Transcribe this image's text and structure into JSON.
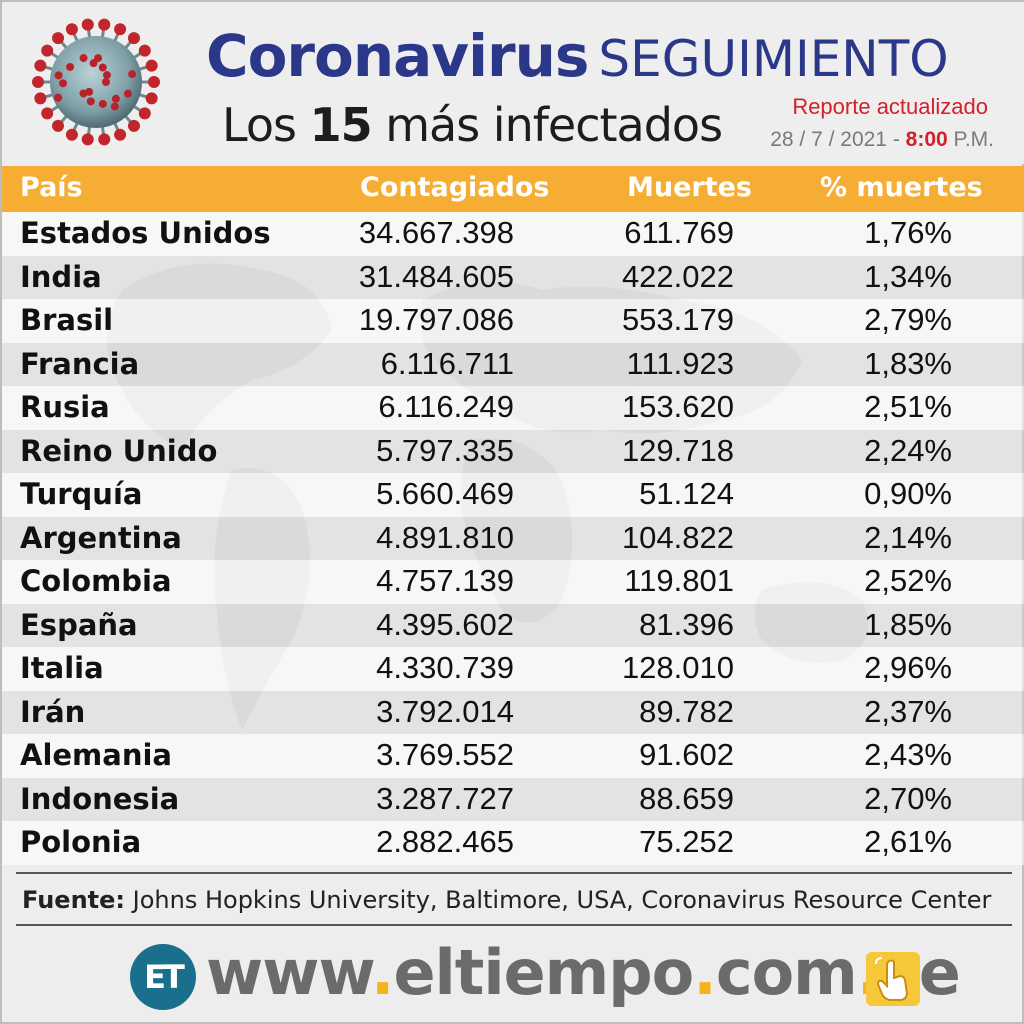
{
  "header": {
    "title_main": "Coronavirus",
    "title_sub": "SEGUIMIENTO",
    "subtitle_prefix": "Los",
    "subtitle_number": "15",
    "subtitle_suffix": "más infectados",
    "report_label": "Reporte actualizado",
    "report_date": "28 / 7 / 2021 -",
    "report_hour": "8:00",
    "report_ampm": "P.M.",
    "virus_icon": "coronavirus-icon"
  },
  "colors": {
    "title": "#2b3788",
    "header_band": "#f6ad34",
    "accent_red": "#d4202a",
    "logo": "#1a6f8c",
    "url_dots": "#f6b21a"
  },
  "chart_data": {
    "type": "table",
    "title": "Los 15 más infectados",
    "columns": [
      "País",
      "Contagiados",
      "Muertes",
      "% muertes"
    ],
    "rows": [
      [
        "Estados Unidos",
        "34.667.398",
        "611.769",
        "1,76%"
      ],
      [
        "India",
        "31.484.605",
        "422.022",
        "1,34%"
      ],
      [
        "Brasil",
        "19.797.086",
        "553.179",
        "2,79%"
      ],
      [
        "Francia",
        "6.116.711",
        "111.923",
        "1,83%"
      ],
      [
        "Rusia",
        "6.116.249",
        "153.620",
        "2,51%"
      ],
      [
        "Reino Unido",
        "5.797.335",
        "129.718",
        "2,24%"
      ],
      [
        "Turquía",
        "5.660.469",
        "51.124",
        "0,90%"
      ],
      [
        "Argentina",
        "4.891.810",
        "104.822",
        "2,14%"
      ],
      [
        "Colombia",
        "4.757.139",
        "119.801",
        "2,52%"
      ],
      [
        "España",
        "4.395.602",
        "81.396",
        "1,85%"
      ],
      [
        "Italia",
        "4.330.739",
        "128.010",
        "2,96%"
      ],
      [
        "Irán",
        "3.792.014",
        "89.782",
        "2,37%"
      ],
      [
        "Alemania",
        "3.769.552",
        "91.602",
        "2,43%"
      ],
      [
        "Indonesia",
        "3.287.727",
        "88.659",
        "2,70%"
      ],
      [
        "Polonia",
        "2.882.465",
        "75.252",
        "2,61%"
      ]
    ]
  },
  "source": {
    "label": "Fuente:",
    "text": "Johns Hopkins University, Baltimore, USA, Coronavirus Resource Center"
  },
  "footer": {
    "logo_text": "ET",
    "url_parts": [
      "www",
      ".",
      "eltiempo",
      ".",
      "com",
      ".",
      "ve"
    ],
    "hand_icon": "pointing-hand-icon"
  }
}
